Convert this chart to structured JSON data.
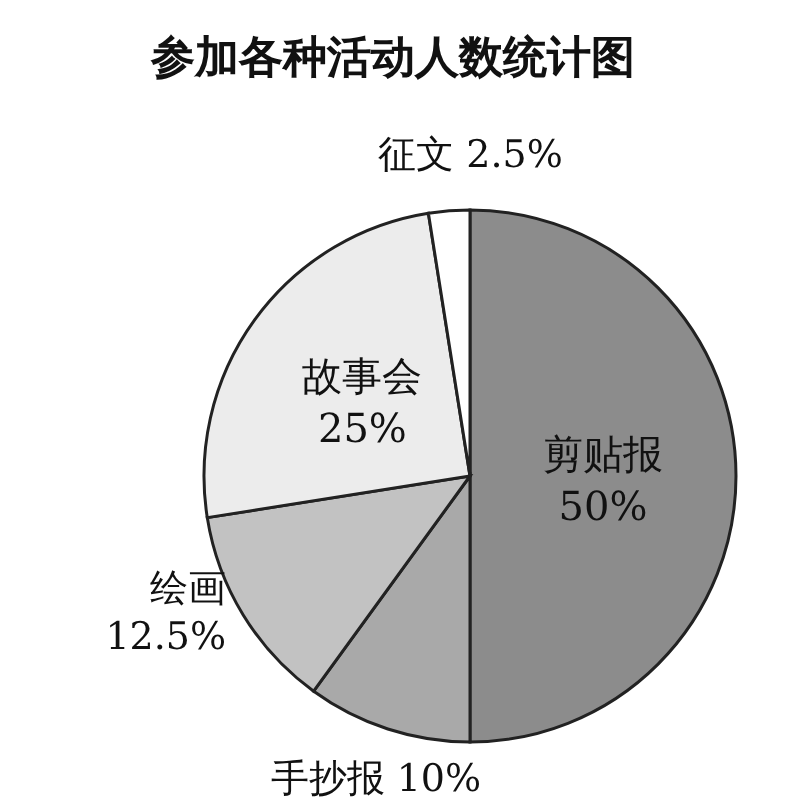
{
  "chart_data": {
    "type": "pie",
    "title": "参加各种活动人数统计图",
    "categories": [
      "剪贴报",
      "手抄报",
      "绘画",
      "故事会",
      "征文"
    ],
    "values": [
      50,
      10,
      12.5,
      25,
      2.5
    ],
    "colors": [
      "#8c8c8c",
      "#a9a9a9",
      "#c2c2c2",
      "#ececec",
      "#ffffff"
    ],
    "value_labels": [
      "50%",
      "10%",
      "12.5%",
      "25%",
      "2.5%"
    ]
  }
}
